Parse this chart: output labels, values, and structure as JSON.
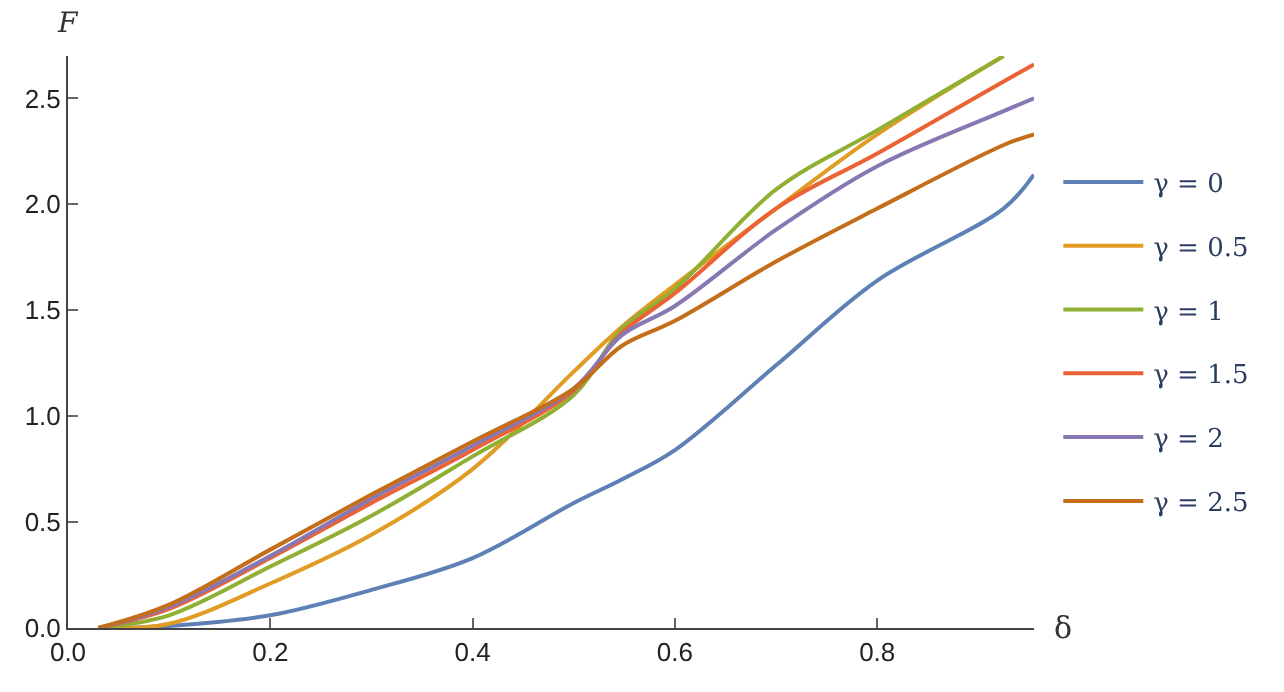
{
  "chart_data": {
    "type": "line",
    "xlabel": "δ",
    "ylabel": "F",
    "x": [
      0.03,
      0.1,
      0.2,
      0.3,
      0.4,
      0.5,
      0.547,
      0.6,
      0.7,
      0.8,
      0.925,
      0.955
    ],
    "xlim": [
      0,
      0.955
    ],
    "ylim": [
      0,
      2.7
    ],
    "xticks": [
      {
        "value": 0,
        "label": "0.0"
      },
      0.2,
      0.4,
      0.6,
      0.8
    ],
    "yticks": [
      {
        "value": 0,
        "label": "0.0"
      },
      0.5,
      {
        "value": 1,
        "label": "1.0"
      },
      1.5,
      {
        "value": 2,
        "label": "2.0"
      },
      2.5
    ],
    "legend": "right",
    "line_style": "solid",
    "marker": "none",
    "series": [
      {
        "name": "γ = 0",
        "color": "#5e81b5",
        "values": [
          0,
          0.01,
          0.06,
          0.18,
          0.33,
          0.59,
          0.7,
          0.84,
          1.24,
          1.64,
          1.98,
          2.14
        ]
      },
      {
        "name": "γ = 0.5",
        "color": "#e19c24",
        "values": [
          0,
          0.02,
          0.21,
          0.44,
          0.75,
          1.21,
          1.42,
          1.62,
          1.98,
          2.33,
          2.7,
          null
        ]
      },
      {
        "name": "γ = 1",
        "color": "#8fb032",
        "values": [
          0,
          0.06,
          0.29,
          0.53,
          0.81,
          1.1,
          1.41,
          1.6,
          2.07,
          2.35,
          2.7,
          null
        ]
      },
      {
        "name": "γ = 1.5",
        "color": "#eb6235",
        "values": [
          0,
          0.09,
          0.33,
          0.59,
          0.84,
          1.12,
          1.39,
          1.58,
          1.98,
          2.24,
          2.58,
          2.66
        ]
      },
      {
        "name": "γ = 2",
        "color": "#8778b3",
        "values": [
          0,
          0.1,
          0.34,
          0.61,
          0.86,
          1.13,
          1.38,
          1.52,
          1.88,
          2.18,
          2.44,
          2.5
        ]
      },
      {
        "name": "γ = 2.5",
        "color": "#c56e1a",
        "values": [
          0,
          0.11,
          0.37,
          0.63,
          0.88,
          1.13,
          1.33,
          1.45,
          1.73,
          1.98,
          2.28,
          2.33
        ]
      }
    ]
  }
}
